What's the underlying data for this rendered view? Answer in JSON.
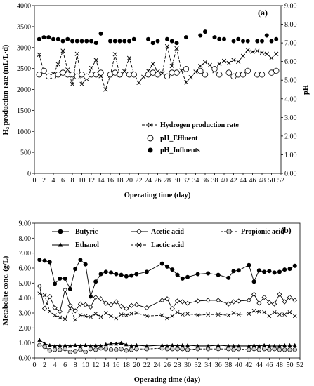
{
  "chart_data": [
    {
      "panel_label": "(a)",
      "type": "line",
      "xlabel": "Operating time (day)",
      "ylabel": "H₂ production rate (mL/L·d)",
      "y2label": "pH",
      "xlim": [
        0,
        52
      ],
      "ylim": [
        0,
        4000
      ],
      "y2lim": [
        0,
        9
      ],
      "xticks": [
        "0",
        "2",
        "4",
        "6",
        "8",
        "10",
        "12",
        "14",
        "16",
        "18",
        "20",
        "22",
        "24",
        "26",
        "28",
        "30",
        "32",
        "34",
        "36",
        "38",
        "40",
        "42",
        "44",
        "46",
        "48",
        "50",
        "52"
      ],
      "yticks": [
        "0",
        "500",
        "1000",
        "1500",
        "2000",
        "2500",
        "3000",
        "3500",
        "4000"
      ],
      "y2ticks": [
        "0.00",
        "1.00",
        "2.00",
        "3.00",
        "4.00",
        "5.00",
        "6.00",
        "7.00",
        "8.00",
        "9.00"
      ],
      "legend_position": "bottom-right",
      "series": [
        {
          "name": "Hydrogen production rate",
          "axis": "left",
          "x": [
            1,
            2,
            3,
            4,
            5,
            6,
            7,
            8,
            9,
            10,
            11,
            12,
            13,
            14,
            15,
            16,
            17,
            18,
            19,
            20,
            21,
            22,
            23,
            24,
            25,
            26,
            27,
            28,
            29,
            30,
            31,
            32,
            33,
            34,
            35,
            36,
            37,
            38,
            39,
            40,
            41,
            42,
            43,
            44,
            45,
            46,
            47,
            48,
            49,
            50,
            51
          ],
          "values": [
            2830,
            2430,
            2310,
            2370,
            2600,
            2920,
            2470,
            2130,
            2850,
            2130,
            2250,
            2510,
            2700,
            2320,
            2000,
            2330,
            2840,
            2340,
            2430,
            2750,
            2380,
            2160,
            2300,
            2440,
            2610,
            2430,
            2390,
            3030,
            2560,
            2980,
            2450,
            2170,
            2290,
            2420,
            2560,
            2650,
            2580,
            2440,
            2610,
            2680,
            2630,
            2700,
            2660,
            2800,
            2940,
            2900,
            2920,
            2880,
            2850,
            2750,
            2850
          ]
        },
        {
          "name": "pH_Effluent",
          "axis": "right",
          "x": [
            1,
            2,
            3,
            4,
            5,
            6,
            7,
            8,
            9,
            10,
            11,
            12,
            13,
            14,
            16,
            17,
            18,
            20,
            21,
            24,
            25,
            26,
            28,
            29,
            30,
            32,
            35,
            36,
            38,
            39,
            41,
            42,
            43,
            44,
            45,
            47,
            48,
            50,
            51
          ],
          "values": [
            5.3,
            5.5,
            5.2,
            5.2,
            5.3,
            5.4,
            5.3,
            5.3,
            5.2,
            5.3,
            5.2,
            5.3,
            5.3,
            5.4,
            5.3,
            5.4,
            5.3,
            5.3,
            5.3,
            5.3,
            5.4,
            5.3,
            5.2,
            5.4,
            5.4,
            5.6,
            5.5,
            5.3,
            5.6,
            5.3,
            5.4,
            5.2,
            5.3,
            5.3,
            5.5,
            5.3,
            5.3,
            5.4,
            5.5
          ]
        },
        {
          "name": "pH_Influents",
          "axis": "right",
          "x": [
            1,
            2,
            3,
            4,
            5,
            6,
            7,
            8,
            9,
            10,
            11,
            12,
            13,
            14,
            16,
            17,
            18,
            19,
            20,
            21,
            24,
            25,
            26,
            28,
            29,
            30,
            32,
            35,
            36,
            38,
            39,
            40,
            42,
            43,
            44,
            45,
            47,
            48,
            49,
            50,
            51
          ],
          "values": [
            7.2,
            7.3,
            7.3,
            7.2,
            7.2,
            7.1,
            7.2,
            7.1,
            7.1,
            7.1,
            7.1,
            7.1,
            7.0,
            7.5,
            7.1,
            7.1,
            7.1,
            7.1,
            7.1,
            7.2,
            7.2,
            7.0,
            7.1,
            7.2,
            7.1,
            7.0,
            7.3,
            7.4,
            7.6,
            7.3,
            7.2,
            7.2,
            7.1,
            7.2,
            7.1,
            7.1,
            7.1,
            7.1,
            7.4,
            7.1,
            7.2
          ]
        }
      ]
    },
    {
      "panel_label": "(b)",
      "type": "line",
      "xlabel": "Operating time (day)",
      "ylabel": "Metabolite conc. (g/L)",
      "xlim": [
        0,
        52
      ],
      "ylim": [
        0,
        9
      ],
      "xticks": [
        "0",
        "2",
        "4",
        "6",
        "8",
        "10",
        "12",
        "14",
        "16",
        "18",
        "20",
        "22",
        "24",
        "26",
        "28",
        "30",
        "32",
        "34",
        "36",
        "38",
        "40",
        "42",
        "44",
        "46",
        "48",
        "50",
        "52"
      ],
      "yticks": [
        "0.00",
        "1.00",
        "2.00",
        "3.00",
        "4.00",
        "5.00",
        "6.00",
        "7.00",
        "8.00",
        "9.00"
      ],
      "legend_position": "top",
      "series": [
        {
          "name": "Butyric",
          "x": [
            1,
            2,
            3,
            4,
            5,
            6,
            7,
            8,
            9,
            10,
            11,
            12,
            13,
            14,
            15,
            16,
            17,
            18,
            19,
            20,
            22,
            25,
            26,
            27,
            28,
            29,
            30,
            32,
            34,
            36,
            38,
            39,
            40,
            42,
            43,
            44,
            45,
            46,
            47,
            48,
            49,
            50,
            51
          ],
          "values": [
            6.55,
            6.5,
            6.4,
            4.95,
            5.3,
            5.3,
            4.6,
            5.95,
            6.55,
            6.25,
            4.1,
            5.1,
            5.6,
            5.75,
            5.7,
            5.6,
            5.55,
            5.45,
            5.5,
            5.6,
            5.75,
            6.3,
            6.1,
            5.9,
            5.55,
            5.3,
            5.4,
            5.6,
            5.65,
            5.55,
            5.35,
            5.8,
            5.85,
            6.2,
            5.1,
            5.85,
            5.75,
            5.8,
            5.7,
            5.75,
            5.9,
            5.95,
            6.15
          ]
        },
        {
          "name": "Acetic acid",
          "x": [
            1,
            2,
            3,
            4,
            5,
            6,
            7,
            8,
            9,
            10,
            11,
            12,
            13,
            14,
            15,
            16,
            17,
            18,
            19,
            20,
            22,
            25,
            26,
            27,
            28,
            29,
            30,
            32,
            34,
            36,
            38,
            39,
            40,
            42,
            43,
            44,
            45,
            46,
            47,
            48,
            49,
            50,
            51
          ],
          "values": [
            4.8,
            3.3,
            4.1,
            3.35,
            3.1,
            4.55,
            3.5,
            3.15,
            3.6,
            3.55,
            3.4,
            4.05,
            3.95,
            3.65,
            3.55,
            3.75,
            3.45,
            3.3,
            3.5,
            3.55,
            3.35,
            3.85,
            3.95,
            3.3,
            3.8,
            3.75,
            3.65,
            3.8,
            3.85,
            3.85,
            3.6,
            3.75,
            3.8,
            3.85,
            4.25,
            3.65,
            4.05,
            3.7,
            3.6,
            4.25,
            3.75,
            4.05,
            3.85
          ]
        },
        {
          "name": "Propionic acid",
          "x": [
            1,
            2,
            3,
            4,
            5,
            6,
            7,
            8,
            9,
            10,
            11,
            12,
            13,
            14,
            15,
            16,
            17,
            18,
            19,
            20,
            22,
            25,
            26,
            27,
            28,
            29,
            30,
            32,
            34,
            36,
            38,
            39,
            40,
            42,
            43,
            44,
            45,
            46,
            47,
            48,
            49,
            50,
            51
          ],
          "values": [
            0.85,
            0.75,
            0.5,
            0.55,
            0.55,
            0.6,
            0.4,
            0.45,
            0.55,
            0.4,
            0.6,
            0.55,
            0.65,
            0.6,
            0.55,
            0.55,
            0.6,
            0.5,
            0.55,
            0.6,
            0.6,
            0.65,
            0.6,
            0.6,
            0.6,
            0.6,
            0.55,
            0.6,
            0.6,
            0.6,
            0.6,
            0.55,
            0.6,
            0.55,
            0.6,
            0.55,
            0.6,
            0.55,
            0.6,
            0.55,
            0.55,
            0.55,
            0.55
          ]
        },
        {
          "name": "Ethanol",
          "x": [
            1,
            2,
            3,
            4,
            5,
            6,
            7,
            8,
            9,
            10,
            11,
            12,
            13,
            14,
            15,
            16,
            17,
            18,
            19,
            20,
            22,
            25,
            26,
            27,
            28,
            29,
            30,
            32,
            34,
            36,
            38,
            39,
            40,
            42,
            43,
            44,
            45,
            46,
            47,
            48,
            49,
            50,
            51
          ],
          "values": [
            1.2,
            0.95,
            0.85,
            0.8,
            0.85,
            0.85,
            0.8,
            0.85,
            0.8,
            0.85,
            0.8,
            0.85,
            0.8,
            0.9,
            0.95,
            0.95,
            1.0,
            0.9,
            0.8,
            0.85,
            0.8,
            0.85,
            0.8,
            0.85,
            0.8,
            0.85,
            0.85,
            0.8,
            0.8,
            0.85,
            0.8,
            0.8,
            0.8,
            0.8,
            0.85,
            0.8,
            0.85,
            0.8,
            0.8,
            0.8,
            0.85,
            0.85,
            0.85
          ]
        },
        {
          "name": "Lactic acid",
          "x": [
            1,
            2,
            3,
            4,
            5,
            6,
            7,
            8,
            9,
            10,
            11,
            12,
            13,
            14,
            15,
            16,
            17,
            18,
            19,
            20,
            22,
            25,
            26,
            27,
            28,
            29,
            30,
            32,
            34,
            36,
            38,
            39,
            40,
            42,
            43,
            44,
            45,
            46,
            47,
            48,
            49,
            50,
            51
          ],
          "values": [
            4.3,
            4.2,
            3.1,
            2.85,
            2.7,
            2.6,
            3.3,
            2.55,
            2.85,
            2.8,
            2.75,
            2.95,
            2.75,
            3.0,
            2.8,
            2.65,
            2.9,
            2.85,
            2.95,
            3.0,
            2.8,
            2.85,
            2.65,
            2.8,
            3.05,
            2.9,
            2.95,
            2.85,
            2.9,
            2.9,
            2.85,
            3.0,
            2.9,
            2.95,
            3.15,
            3.1,
            3.05,
            2.8,
            3.05,
            2.9,
            2.9,
            3.05,
            2.8
          ]
        }
      ]
    }
  ]
}
